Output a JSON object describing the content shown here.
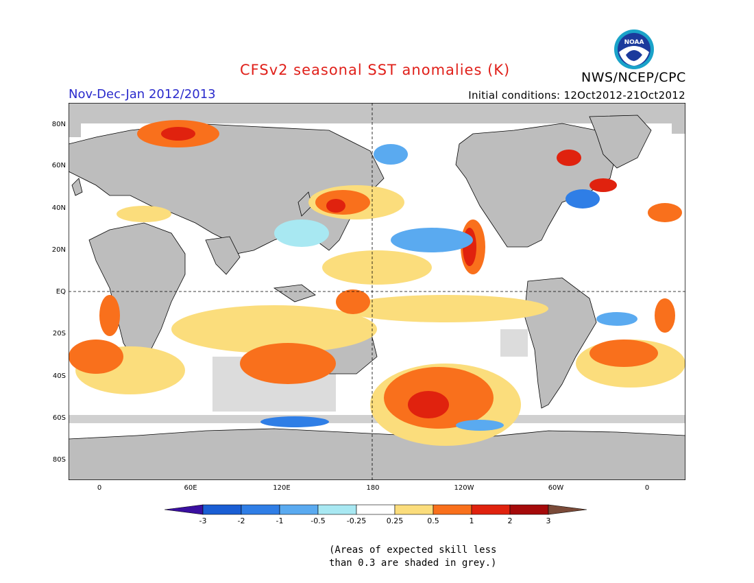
{
  "title": "CFSv2 seasonal SST anomalies (K)",
  "agency": "NWS/NCEP/CPC",
  "logo_text": "NOAA",
  "period": "Nov-Dec-Jan 2012/2013",
  "initial_conditions": "Initial conditions: 12Oct2012-21Oct2012",
  "lat_labels": [
    "80N",
    "60N",
    "40N",
    "20N",
    "EQ",
    "20S",
    "40S",
    "60S",
    "80S"
  ],
  "lon_labels": [
    "0",
    "60E",
    "120E",
    "180",
    "120W",
    "60W",
    "0"
  ],
  "colorbar": {
    "labels": [
      "-3",
      "-2",
      "-1",
      "-0.5",
      "-0.25",
      "0.25",
      "0.5",
      "1",
      "2",
      "3"
    ],
    "colors": [
      "#3a0fa0",
      "#1a5ed4",
      "#2f7ee6",
      "#5aaaf0",
      "#a8e8f2",
      "#ffffff",
      "#fbdd7c",
      "#f9701c",
      "#e0220e",
      "#a50a0a",
      "#7a4a38"
    ]
  },
  "note": [
    "(Areas of expected skill less",
    "than 0.3 are shaded in grey.)"
  ]
}
